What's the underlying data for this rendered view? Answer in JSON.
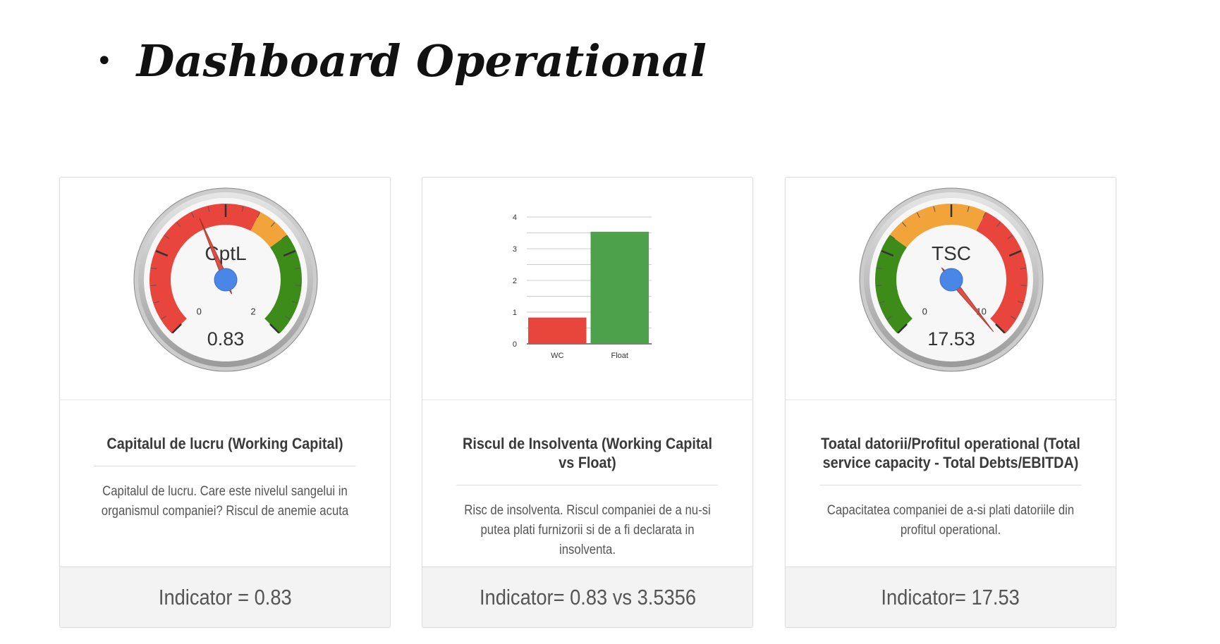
{
  "page": {
    "bullet": "•",
    "title": "Dashboard Operational"
  },
  "cards": [
    {
      "kind": "gauge",
      "gauge": {
        "label": "CptL",
        "value": 0.83,
        "value_text": "0.83",
        "min": 0,
        "max": 2,
        "min_label": "0",
        "max_label": "2",
        "bands": [
          {
            "from": 0,
            "to": 1.2,
            "color": "#e8453c"
          },
          {
            "from": 1.2,
            "to": 1.4,
            "color": "#f2a33a"
          },
          {
            "from": 1.4,
            "to": 2.0,
            "color": "#3d8b18"
          }
        ]
      },
      "heading": "Capitalul de lucru (Working Capital)",
      "text": "Capitalul de lucru. Care este nivelul sangelui in organismul companiei? Riscul de anemie acuta",
      "footer": "Indicator = 0.83"
    },
    {
      "kind": "bar",
      "chart_data": {
        "type": "bar",
        "categories": [
          "WC",
          "Float"
        ],
        "values": [
          0.83,
          3.5356
        ],
        "colors": [
          "#e8453c",
          "#4da14a"
        ],
        "ylim": [
          0,
          4
        ],
        "yticks": [
          "0",
          "1",
          "2",
          "3",
          "4"
        ],
        "title": "",
        "xlabel": "",
        "ylabel": "",
        "grid": true
      },
      "heading": "Riscul de Insolventa (Working Capital vs Float)",
      "text": "Risc de insolventa. Riscul companiei de a nu-si putea plati furnizorii si de a fi declarata in insolventa.",
      "footer": "Indicator= 0.83 vs 3.5356"
    },
    {
      "kind": "gauge",
      "gauge": {
        "label": "TSC",
        "value": 17.53,
        "value_text": "17.53",
        "min": 0,
        "max": 10,
        "min_label": "0",
        "max_label": "10",
        "bands": [
          {
            "from": 0,
            "to": 3,
            "color": "#3d8b18"
          },
          {
            "from": 3,
            "to": 6,
            "color": "#f2a33a"
          },
          {
            "from": 6,
            "to": 10,
            "color": "#e8453c"
          }
        ]
      },
      "heading": "Toatal datorii/Profitul operational (Total service capacity - Total Debts/EBITDA)",
      "text": "Capacitatea companiei de a-si plati datoriile din profitul operational.",
      "footer": "Indicator= 17.53"
    }
  ]
}
